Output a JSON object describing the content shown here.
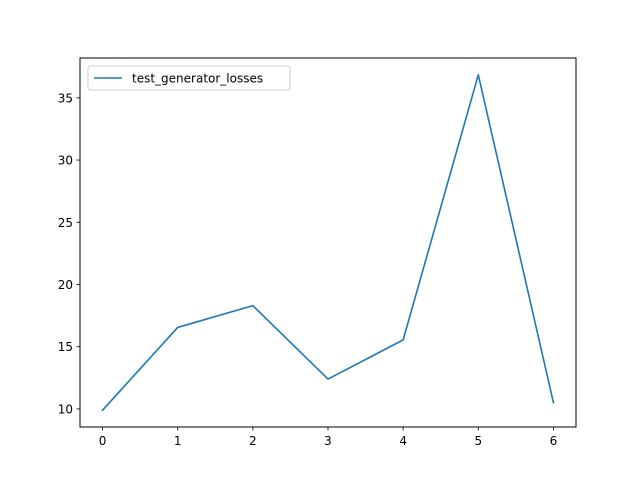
{
  "chart_data": {
    "type": "line",
    "title": "",
    "xlabel": "",
    "ylabel": "",
    "x": [
      0,
      1,
      2,
      3,
      4,
      5,
      6
    ],
    "series": [
      {
        "name": "test_generator_losses",
        "values": [
          9.9,
          16.55,
          18.3,
          12.4,
          15.55,
          36.85,
          10.5
        ],
        "color": "#1f77b4"
      }
    ],
    "xticks": [
      0,
      1,
      2,
      3,
      4,
      5,
      6
    ],
    "yticks": [
      10,
      15,
      20,
      25,
      30,
      35
    ],
    "xlim": [
      -0.3,
      6.3
    ],
    "ylim": [
      8.55,
      38.2
    ],
    "grid": false,
    "legend_position": "upper-left"
  }
}
